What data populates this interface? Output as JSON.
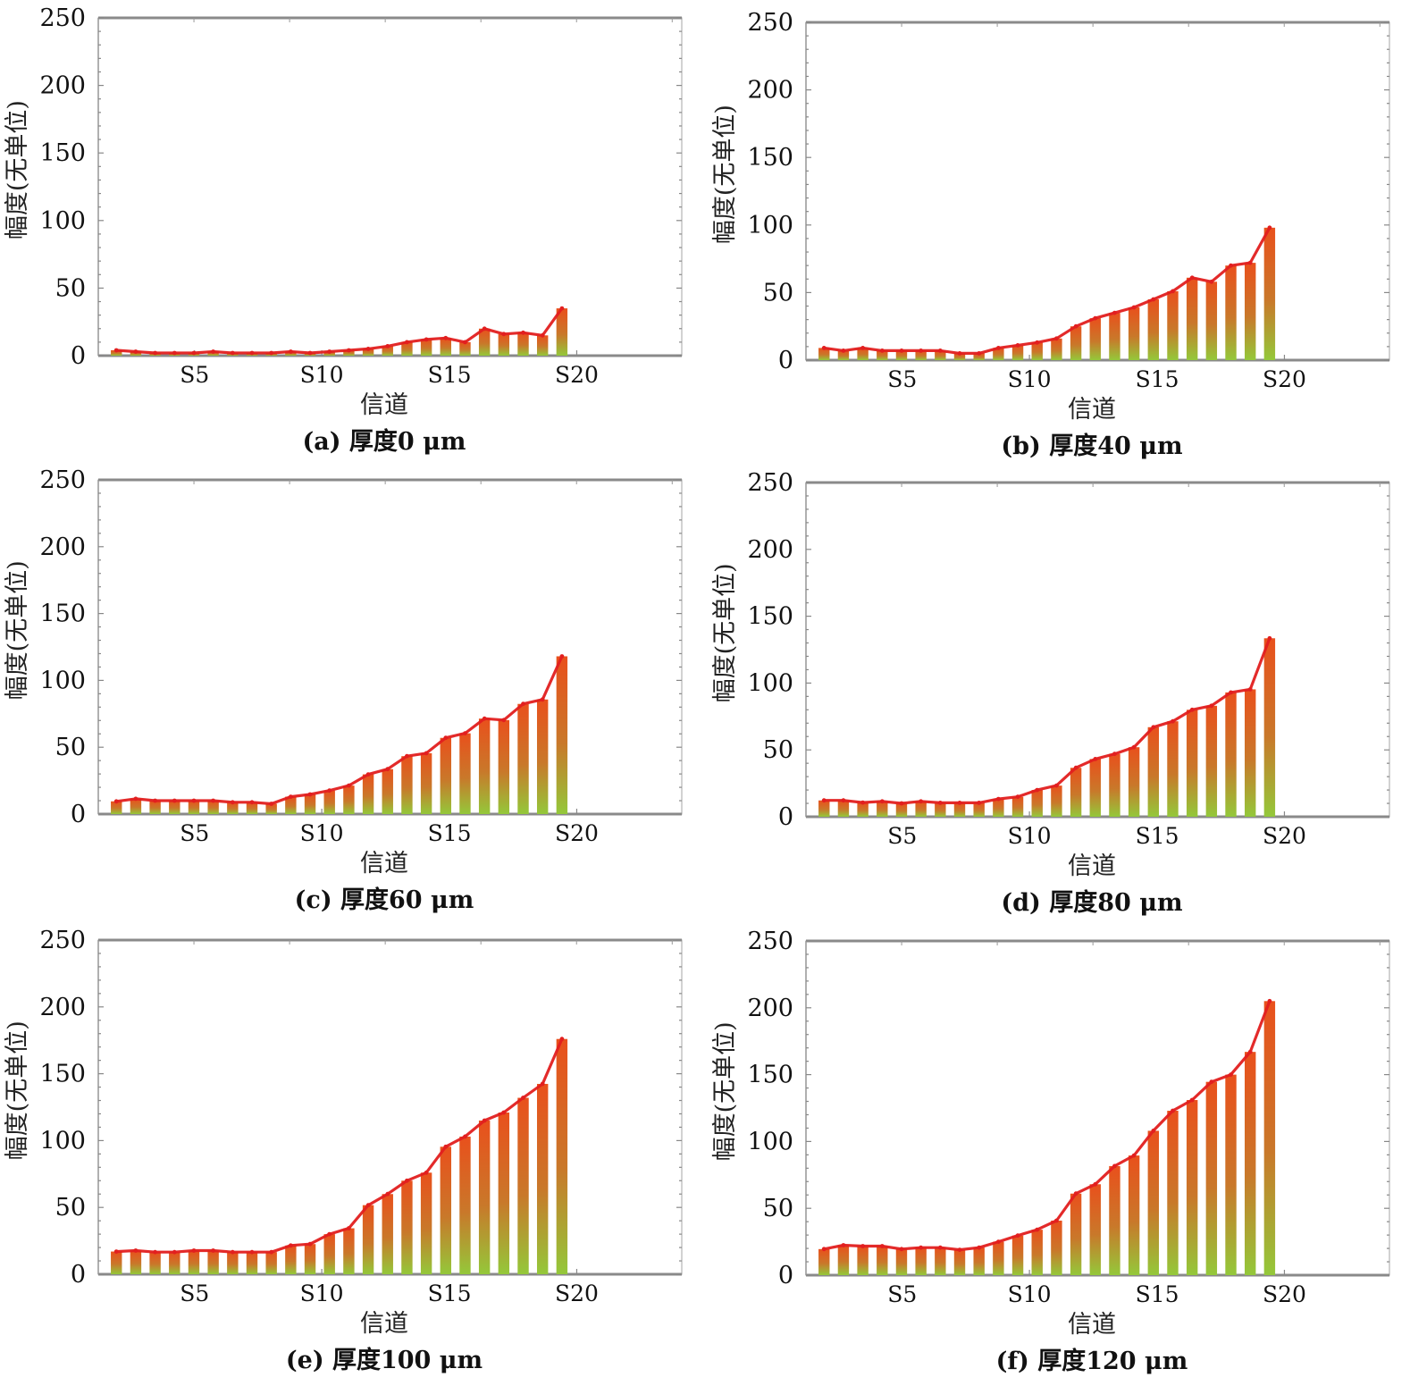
{
  "figure": {
    "panels": [
      {
        "id": "a",
        "caption": "(a) 厚度0 μm"
      },
      {
        "id": "b",
        "caption": "(b) 厚度40 μm"
      },
      {
        "id": "c",
        "caption": "(c) 厚度60 μm"
      },
      {
        "id": "d",
        "caption": "(d) 厚度80 μm"
      },
      {
        "id": "e",
        "caption": "(e) 厚度100 μm"
      },
      {
        "id": "f",
        "caption": "(f) 厚度120 μm"
      }
    ]
  },
  "colors": {
    "bar_top": "#e9501c",
    "bar_mid": "#c9782a",
    "bar_bottom": "#94c83a",
    "line": "#e21f1f",
    "frame": "#8a8a8a"
  },
  "chart_data": [
    {
      "type": "bar",
      "title": "(a) 厚度0 μm",
      "xlabel": "信道",
      "ylabel": "幅度(无单位)",
      "ylim": [
        0,
        250
      ],
      "yticks": [
        0,
        50,
        100,
        150,
        200,
        250
      ],
      "xtick_labels": [
        "S5",
        "S10",
        "S15",
        "S20"
      ],
      "grid": false,
      "series": [
        {
          "name": "幅度",
          "style": "bar+line",
          "values": [
            4,
            3,
            2,
            2,
            2,
            3,
            2,
            2,
            2,
            3,
            2,
            3,
            4,
            5,
            7,
            10,
            12,
            13,
            10,
            20,
            16,
            17,
            15,
            35
          ]
        }
      ]
    },
    {
      "type": "bar",
      "title": "(b) 厚度40 μm",
      "xlabel": "信道",
      "ylabel": "幅度(无单位)",
      "ylim": [
        0,
        250
      ],
      "yticks": [
        0,
        50,
        100,
        150,
        200,
        250
      ],
      "xtick_labels": [
        "S5",
        "S10",
        "S15",
        "S20"
      ],
      "grid": false,
      "series": [
        {
          "name": "幅度",
          "style": "bar+line",
          "values": [
            9,
            7,
            9,
            7,
            7,
            7,
            7,
            5,
            5,
            9,
            11,
            13,
            16,
            25,
            31,
            35,
            39,
            45,
            51,
            61,
            58,
            70,
            72,
            98
          ]
        }
      ]
    },
    {
      "type": "bar",
      "title": "(c) 厚度60 μm",
      "xlabel": "信道",
      "ylabel": "幅度(无单位)",
      "ylim": [
        0,
        250
      ],
      "yticks": [
        0,
        50,
        100,
        150,
        200,
        250
      ],
      "xtick_labels": [
        "S5",
        "S10",
        "S15",
        "S20"
      ],
      "grid": false,
      "series": [
        {
          "name": "幅度",
          "style": "bar+line",
          "values": [
            9.5,
            11.4,
            10,
            10,
            10,
            10,
            8.8,
            8.8,
            7.7,
            13,
            14.7,
            17.6,
            21.3,
            29.7,
            33.6,
            43.3,
            45.5,
            57,
            60.4,
            71.4,
            70.3,
            82.4,
            85.7,
            118
          ]
        }
      ]
    },
    {
      "type": "bar",
      "title": "(d) 厚度80 μm",
      "xlabel": "信道",
      "ylabel": "幅度(无单位)",
      "ylim": [
        0,
        250
      ],
      "yticks": [
        0,
        50,
        100,
        150,
        200,
        250
      ],
      "xtick_labels": [
        "S5",
        "S10",
        "S15",
        "S20"
      ],
      "grid": false,
      "series": [
        {
          "name": "幅度",
          "style": "bar+line",
          "values": [
            12.2,
            12.2,
            10.6,
            11.5,
            10,
            11.5,
            10.4,
            10.4,
            10.4,
            13.3,
            14.9,
            20,
            23.3,
            36.6,
            43.2,
            47,
            52,
            67,
            71.4,
            80,
            83,
            93,
            95.3,
            133.5
          ]
        }
      ]
    },
    {
      "type": "bar",
      "title": "(e) 厚度100 μm",
      "xlabel": "信道",
      "ylabel": "幅度(无单位)",
      "ylim": [
        0,
        250
      ],
      "yticks": [
        0,
        50,
        100,
        150,
        200,
        250
      ],
      "xtick_labels": [
        "S5",
        "S10",
        "S15",
        "S20"
      ],
      "grid": false,
      "series": [
        {
          "name": "幅度",
          "style": "bar+line",
          "values": [
            17,
            17.7,
            16.6,
            16.6,
            17.7,
            17.7,
            16.6,
            16.6,
            16.6,
            21.5,
            22.6,
            30,
            34.4,
            51.7,
            60,
            70,
            76,
            95.4,
            103,
            115,
            121,
            132,
            142.4,
            176
          ]
        }
      ]
    },
    {
      "type": "bar",
      "title": "(f) 厚度120 μm",
      "xlabel": "信道",
      "ylabel": "幅度(无单位)",
      "ylim": [
        0,
        250
      ],
      "yticks": [
        0,
        50,
        100,
        150,
        200,
        250
      ],
      "xtick_labels": [
        "S5",
        "S10",
        "S15",
        "S20"
      ],
      "grid": false,
      "series": [
        {
          "name": "幅度",
          "style": "bar+line",
          "values": [
            19.5,
            22.4,
            21.7,
            21.7,
            19.5,
            20.6,
            20.6,
            19,
            20.6,
            25,
            29.6,
            34,
            40.8,
            61,
            68,
            81.6,
            89.5,
            108,
            123,
            131,
            144.6,
            150,
            167,
            205
          ]
        }
      ]
    }
  ]
}
